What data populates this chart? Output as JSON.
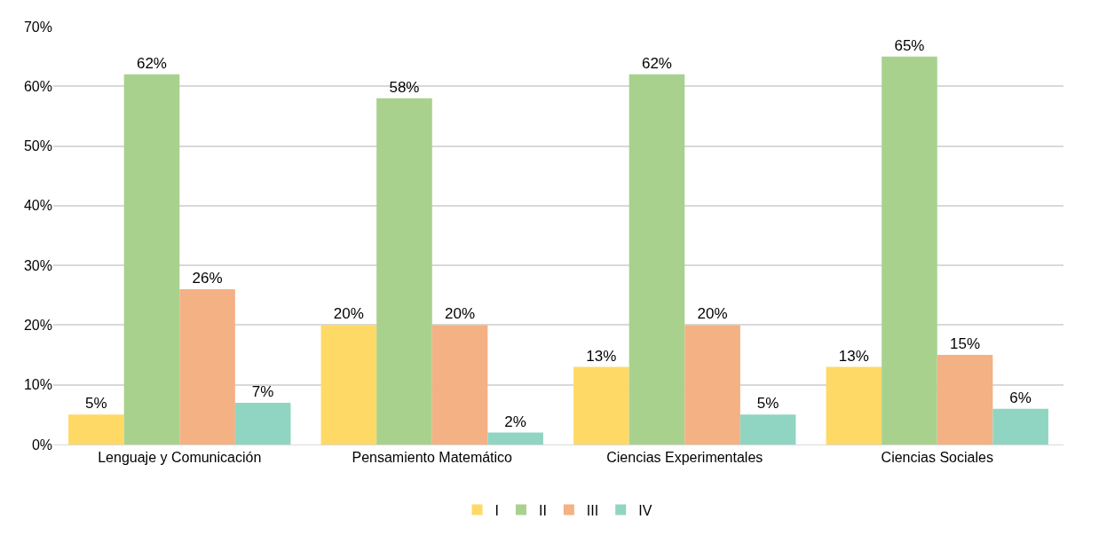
{
  "chart_data": {
    "type": "bar",
    "categories": [
      "Lenguaje y Comunicación",
      "Pensamiento Matemático",
      "Ciencias Experimentales",
      "Ciencias Sociales"
    ],
    "series": [
      {
        "name": "I",
        "color": "#ffd966",
        "values": [
          5,
          20,
          13,
          13
        ],
        "value_labels": [
          "5%",
          "20%",
          "13%",
          "13%"
        ]
      },
      {
        "name": "II",
        "color": "#a9d18e",
        "values": [
          62,
          58,
          62,
          65
        ],
        "value_labels": [
          "62%",
          "58%",
          "62%",
          "65%"
        ]
      },
      {
        "name": "III",
        "color": "#f4b183",
        "values": [
          26,
          20,
          20,
          15
        ],
        "value_labels": [
          "26%",
          "20%",
          "20%",
          "15%"
        ]
      },
      {
        "name": "IV",
        "color": "#8fd5c2",
        "values": [
          7,
          2,
          5,
          6
        ],
        "value_labels": [
          "7%",
          "2%",
          "5%",
          "6%"
        ]
      }
    ],
    "ylim": [
      0,
      70
    ],
    "yticks": [
      {
        "value": 0,
        "label": "0%"
      },
      {
        "value": 10,
        "label": "10%"
      },
      {
        "value": 20,
        "label": "20%"
      },
      {
        "value": 30,
        "label": "30%"
      },
      {
        "value": 40,
        "label": "40%"
      },
      {
        "value": 50,
        "label": "50%"
      },
      {
        "value": 60,
        "label": "60%"
      },
      {
        "value": 70,
        "label": "70%"
      }
    ],
    "grid": "y",
    "legend": "bottom"
  }
}
